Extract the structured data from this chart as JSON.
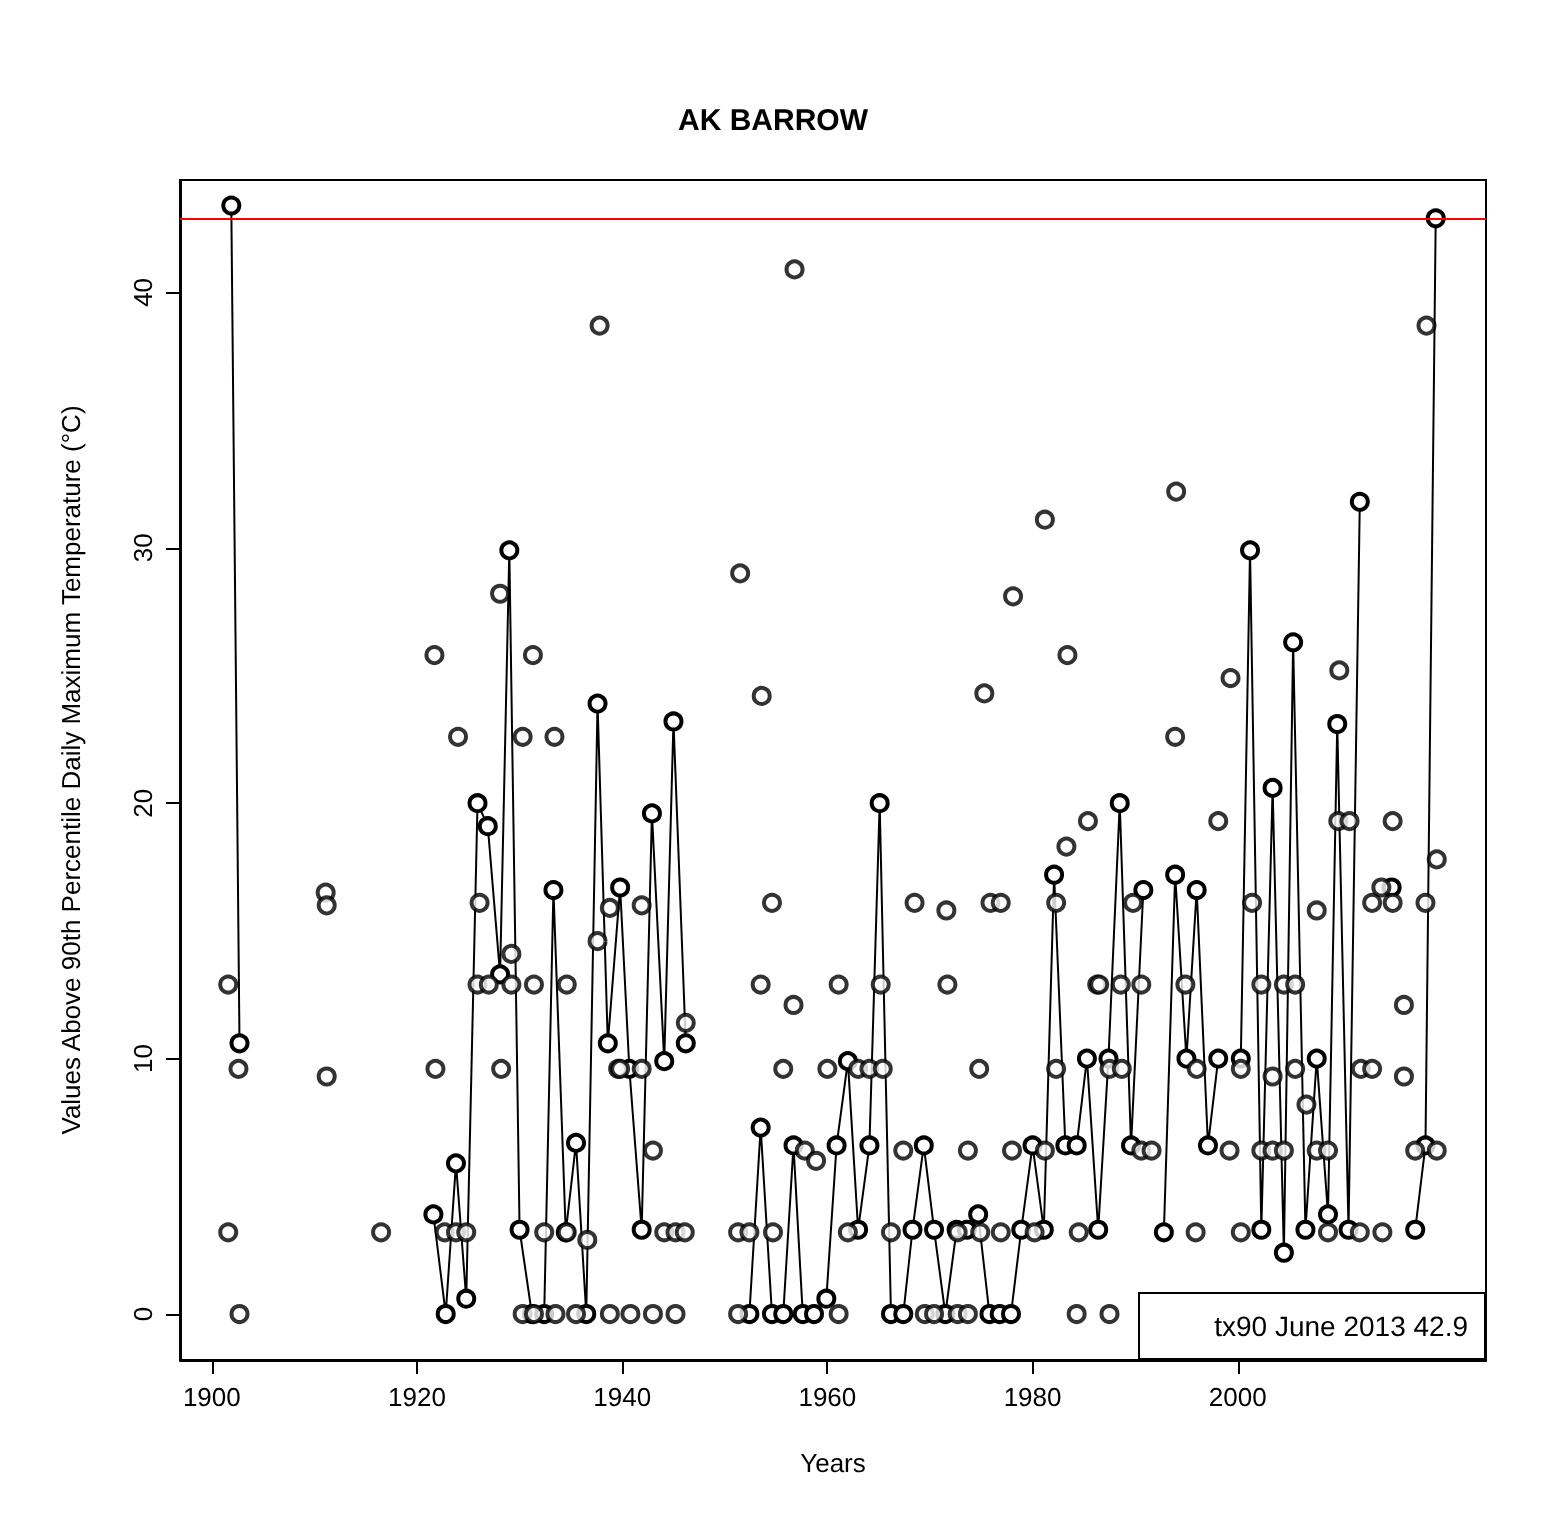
{
  "chart_data": {
    "type": "scatter",
    "title": "AK BARROW",
    "xlabel": "Years",
    "ylabel": "Values Above 90th Percentile Daily Maximum Temperature (°C)",
    "xlim": [
      1896.9,
      2024.2
    ],
    "ylim": [
      -1.8,
      44.4
    ],
    "xticks": [
      1900,
      1920,
      1940,
      1960,
      1980,
      2000
    ],
    "yticks": [
      0,
      10,
      20,
      30,
      40
    ],
    "grid": false,
    "marker": "circle",
    "annotations": [
      "tx90 June 2013 42.9"
    ],
    "ref_lines": [
      {
        "axis": "y",
        "value": 42.9,
        "color": "#ff0000"
      }
    ],
    "series": [
      {
        "type": "line",
        "color": "#000000",
        "x": [
          1901.9,
          1902.7,
          1910.0,
          1921.6,
          1922.8,
          1923.8,
          1924.8,
          1925.9,
          1926.9,
          1928.1,
          1929.0,
          1930.0,
          1931.2,
          1932.4,
          1933.3,
          1934.5,
          1935.5,
          1936.5,
          1937.6,
          1938.6,
          1939.8,
          1940.7,
          1941.9,
          1942.9,
          1944.1,
          1945.0,
          1946.2,
          1949.0,
          1952.4,
          1953.5,
          1954.6,
          1955.7,
          1956.7,
          1957.6,
          1958.7,
          1959.9,
          1960.9,
          1962.0,
          1963.0,
          1964.1,
          1965.1,
          1966.2,
          1967.4,
          1968.3,
          1969.4,
          1970.4,
          1971.5,
          1972.6,
          1973.6,
          1974.7,
          1975.8,
          1976.8,
          1977.9,
          1978.9,
          1980.0,
          1981.1,
          1982.1,
          1983.2,
          1984.3,
          1985.3,
          1986.4,
          1987.4,
          1988.5,
          1989.6,
          1990.8,
          1991.6,
          1992.8,
          1993.9,
          1995.0,
          1996.0,
          1997.1,
          1998.1,
          1999.2,
          2000.3,
          2001.2,
          2002.3,
          2003.4,
          2004.5,
          2005.4,
          2006.6,
          2007.7,
          2008.8,
          2009.7,
          2010.8,
          2011.9,
          2013.5,
          2015.0,
          2016.2,
          2017.3,
          2018.3,
          2019.3
        ],
        "values": [
          43.4,
          10.6,
          null,
          3.9,
          0,
          5.9,
          0.6,
          20.0,
          19.1,
          13.3,
          29.9,
          3.3,
          0,
          0,
          16.6,
          3.2,
          6.7,
          0,
          23.9,
          10.6,
          16.7,
          9.6,
          3.3,
          19.6,
          9.9,
          23.2,
          10.6,
          null,
          0,
          7.3,
          0,
          0,
          6.6,
          0,
          0,
          0.6,
          6.6,
          9.9,
          3.3,
          6.6,
          20.0,
          0,
          0,
          3.3,
          6.6,
          3.3,
          0,
          3.3,
          3.3,
          3.9,
          0,
          0,
          0,
          3.3,
          6.6,
          3.3,
          17.2,
          6.6,
          6.6,
          10.0,
          3.3,
          10.0,
          20.0,
          6.6,
          16.6,
          null,
          3.2,
          17.2,
          10.0,
          16.6,
          6.6,
          10.0,
          null,
          10.0,
          29.9,
          3.3,
          20.6,
          2.4,
          26.3,
          3.3,
          10.0,
          3.9,
          23.1,
          3.3,
          31.8,
          null,
          16.7,
          null,
          3.3,
          6.6,
          42.9
        ]
      },
      {
        "color": "#000000",
        "x": [
          1901.6,
          1901.6,
          1902.6,
          1902.7,
          1911.1,
          1911.2,
          1911.2,
          1916.5,
          1921.7,
          1921.8,
          1922.7,
          1923.8,
          1924.0,
          1924.8,
          1926.1,
          1925.9,
          1927.0,
          1928.1,
          1928.2,
          1929.2,
          1929.2,
          1930.3,
          1930.3,
          1931.3,
          1931.4,
          1931.4,
          1932.4,
          1933.4,
          1933.5,
          1934.6,
          1934.6,
          1935.5,
          1936.6,
          1937.6,
          1937.8,
          1938.8,
          1938.8,
          1939.6,
          1939.8,
          1940.8,
          1941.9,
          1941.9,
          1943.0,
          1943.0,
          1944.1,
          1945.2,
          1945.2,
          1946.1,
          1946.2,
          1951.3,
          1951.3,
          1951.5,
          1952.4,
          1953.5,
          1953.6,
          1954.6,
          1954.7,
          1955.7,
          1956.7,
          1956.8,
          1957.8,
          1958.9,
          1960.0,
          1961.1,
          1961.1,
          1962.0,
          1963.0,
          1964.1,
          1965.2,
          1965.4,
          1966.2,
          1967.4,
          1968.5,
          1969.5,
          1970.4,
          1971.6,
          1971.7,
          1972.7,
          1972.7,
          1973.7,
          1973.7,
          1974.8,
          1974.9,
          1975.9,
          1975.3,
          1976.9,
          1976.9,
          1978.0,
          1978.1,
          1980.2,
          1981.2,
          1981.2,
          1982.3,
          1982.3,
          1983.3,
          1983.4,
          1984.3,
          1984.5,
          1985.4,
          1986.3,
          1986.5,
          1987.5,
          1987.5,
          1988.6,
          1988.7,
          1989.8,
          1990.6,
          1990.6,
          1991.6,
          1994.0,
          1993.9,
          1994.9,
          1995.9,
          1996.0,
          1998.1,
          1999.2,
          1999.3,
          2000.3,
          2000.3,
          2001.4,
          2002.3,
          2002.3,
          2003.4,
          2003.4,
          2004.5,
          2004.5,
          2005.6,
          2005.6,
          2006.7,
          2007.7,
          2007.7,
          2008.8,
          2008.8,
          2009.8,
          2009.9,
          2010.9,
          2011.9,
          2012.0,
          2013.1,
          2013.1,
          2014.0,
          2014.1,
          2015.1,
          2015.1,
          2016.2,
          2016.2,
          2017.3,
          2018.3,
          2018.4,
          2019.4,
          2019.4
        ],
        "values": [
          12.9,
          3.2,
          9.6,
          0,
          16.5,
          16.0,
          9.3,
          3.2,
          25.8,
          9.6,
          3.2,
          3.2,
          22.6,
          3.2,
          16.1,
          12.9,
          12.9,
          28.2,
          9.6,
          14.1,
          12.9,
          22.6,
          0,
          25.8,
          12.9,
          0,
          3.2,
          22.6,
          0,
          12.9,
          3.2,
          0,
          2.9,
          14.6,
          38.7,
          0,
          15.9,
          9.6,
          9.6,
          0,
          16.0,
          9.6,
          6.4,
          0,
          3.2,
          0,
          3.2,
          3.2,
          11.4,
          3.2,
          0,
          29.0,
          3.2,
          12.9,
          24.2,
          16.1,
          3.2,
          9.6,
          12.1,
          40.9,
          6.4,
          6.0,
          9.6,
          12.9,
          0,
          3.2,
          9.6,
          9.6,
          12.9,
          9.6,
          3.2,
          6.4,
          16.1,
          0,
          0,
          15.8,
          12.9,
          3.2,
          0,
          6.4,
          0,
          9.6,
          3.2,
          16.1,
          24.3,
          16.1,
          3.2,
          6.4,
          28.1,
          3.2,
          6.4,
          31.1,
          16.1,
          9.6,
          18.3,
          25.8,
          0,
          3.2,
          19.3,
          12.9,
          12.9,
          9.6,
          0,
          12.9,
          9.6,
          16.1,
          12.9,
          6.4,
          6.4,
          32.2,
          22.6,
          12.9,
          3.2,
          9.6,
          19.3,
          6.4,
          24.9,
          3.2,
          9.6,
          16.1,
          12.9,
          6.4,
          9.3,
          6.4,
          12.9,
          6.4,
          12.9,
          9.6,
          8.2,
          15.8,
          6.4,
          6.4,
          3.2,
          19.3,
          25.2,
          19.3,
          3.2,
          9.6,
          9.6,
          16.1,
          16.7,
          3.2,
          16.1,
          19.3,
          12.1,
          9.3,
          6.4,
          16.1,
          38.7,
          17.8,
          6.4
        ]
      }
    ]
  }
}
